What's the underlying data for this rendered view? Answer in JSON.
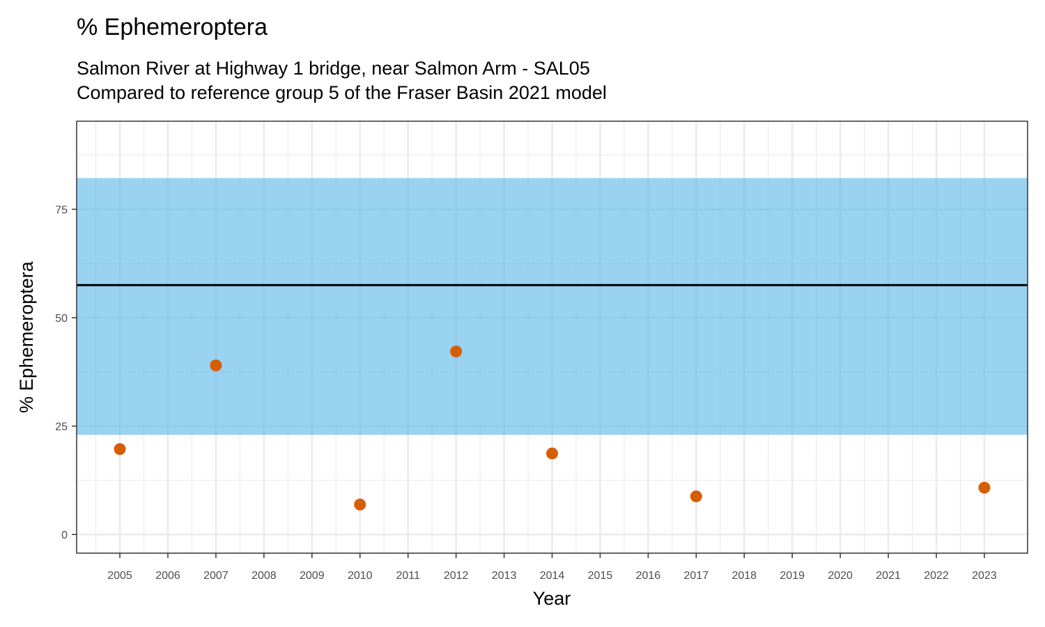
{
  "chart_data": {
    "type": "scatter",
    "title": "% Ephemeroptera",
    "subtitle_lines": [
      "Salmon River at Highway 1 bridge, near Salmon Arm - SAL05",
      "Compared to reference group 5 of the Fraser Basin 2021 model"
    ],
    "xlabel": "Year",
    "ylabel": "% Ephemeroptera",
    "x_ticks": [
      "2005",
      "2006",
      "2007",
      "2008",
      "2009",
      "2010",
      "2011",
      "2012",
      "2013",
      "2014",
      "2015",
      "2016",
      "2017",
      "2018",
      "2019",
      "2020",
      "2021",
      "2022",
      "2023"
    ],
    "y_ticks": [
      0,
      25,
      50,
      75
    ],
    "xlim": [
      2004.1,
      2023.9
    ],
    "ylim": [
      -4.3,
      95.3
    ],
    "grid": true,
    "reference_band": {
      "low": 23,
      "high": 82.2,
      "color": "#56b4e9"
    },
    "reference_line": {
      "value": 57.5,
      "color": "#000000"
    },
    "points": [
      {
        "year": 2005,
        "value": 19.7
      },
      {
        "year": 2007,
        "value": 39
      },
      {
        "year": 2010,
        "value": 6.9
      },
      {
        "year": 2012,
        "value": 42.2
      },
      {
        "year": 2014,
        "value": 18.7
      },
      {
        "year": 2017,
        "value": 8.8
      },
      {
        "year": 2023,
        "value": 10.8
      }
    ],
    "point_color": "#d55e00"
  }
}
